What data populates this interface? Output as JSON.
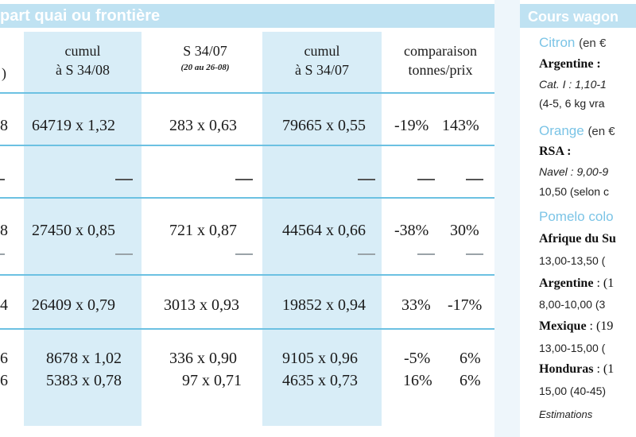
{
  "left": {
    "banner_title": "part quai ou frontière",
    "headers": [
      {
        "label": "",
        "sub": ""
      },
      {
        "label": "cumul",
        "sub": "à S 34/08"
      },
      {
        "label": "S 34/07",
        "sub": "(20 au 26-08)"
      },
      {
        "label": "cumul",
        "sub": "à S 34/07"
      },
      {
        "label": "comparaison",
        "sub": "tonnes/prix"
      }
    ],
    "rows": [
      {
        "c0": "8",
        "c1": "64719 x 1,32",
        "c2": "283 x 0,63",
        "c3": "79665 x 0,55",
        "c4": "-19%",
        "c5": "143%"
      },
      {
        "c0": "8",
        "c1": "27450 x 0,85",
        "c2": "721 x 0,87",
        "c3": "44564 x 0,66",
        "c4": "-38%",
        "c5": "30%"
      },
      {
        "c0": "4",
        "c1": "26409 x 0,79",
        "c2": "3013 x 0,93",
        "c3": "19852 x 0,94",
        "c4": "33%",
        "c5": "-17%"
      },
      {
        "c0": "6",
        "c1": "8678 x 1,02",
        "c2": "336 x 0,90",
        "c3": "9105 x 0,96",
        "c4": "-5%",
        "c5": "6%"
      },
      {
        "c0": "6",
        "c1": "5383 x 0,78",
        "c2": "97 x 0,71",
        "c3": "4635 x 0,73",
        "c4": "16%",
        "c5": "6%"
      }
    ],
    "first_col_header": ")"
  },
  "right": {
    "title": "Cours wagon",
    "lines": [
      {
        "kind": "prod",
        "text": "Citron",
        "unit": "(en €"
      },
      {
        "kind": "country",
        "text": "Argentine :",
        "extra": ""
      },
      {
        "kind": "italic",
        "text": "Cat. I : 1,10-1"
      },
      {
        "kind": "plain",
        "text": "(4-5, 6 kg vra"
      },
      {
        "kind": "prod",
        "text": "Orange",
        "unit": "(en €"
      },
      {
        "kind": "country",
        "text": "RSA :",
        "extra": ""
      },
      {
        "kind": "italic",
        "text": "Navel : 9,00-9"
      },
      {
        "kind": "plain",
        "text": "10,50 (selon c"
      },
      {
        "kind": "prod",
        "text": "Pomelo colo",
        "unit": ""
      },
      {
        "kind": "country",
        "text": "Afrique du Su",
        "extra": ""
      },
      {
        "kind": "plain",
        "text": "13,00-13,50 ("
      },
      {
        "kind": "country",
        "text": "Argentine",
        "extra": " : (1"
      },
      {
        "kind": "plain",
        "text": "8,00-10,00 (3"
      },
      {
        "kind": "country",
        "text": "Mexique",
        "extra": " : (19"
      },
      {
        "kind": "plain",
        "text": "13,00-15,00 ("
      },
      {
        "kind": "country",
        "text": "Honduras",
        "extra": " : (1"
      },
      {
        "kind": "plain",
        "text": "15,00 (40-45)"
      },
      {
        "kind": "italic-small",
        "text": "Estimations"
      }
    ]
  },
  "colors": {
    "accent": "#6cc1e2",
    "banner": "#bfe2f2",
    "shade": "#d8edf7"
  }
}
